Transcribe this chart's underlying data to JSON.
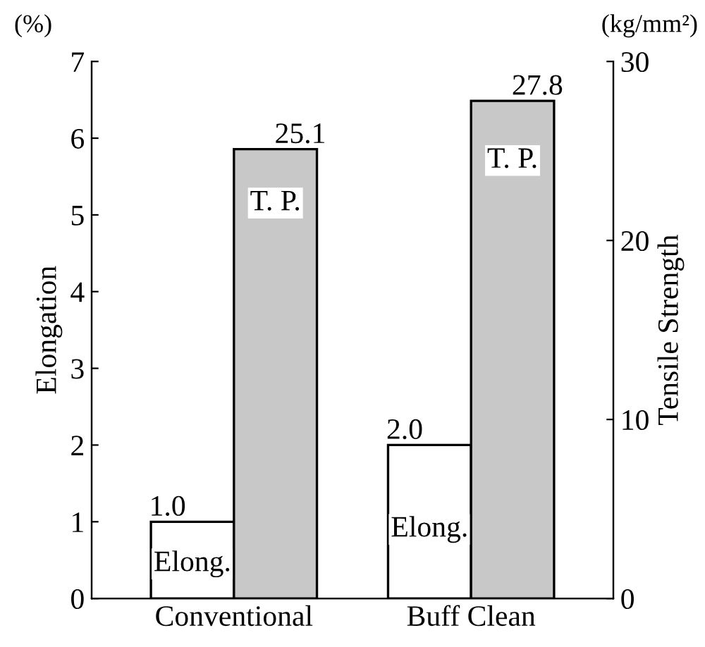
{
  "chart_data": {
    "type": "bar",
    "categories": [
      "Conventional",
      "Buff Clean"
    ],
    "series": [
      {
        "name": "Elong.",
        "color": "#ffffff",
        "values": [
          1.0,
          2.0
        ],
        "value_labels": [
          "1.0",
          "2.0"
        ]
      },
      {
        "name": "T. P.",
        "color": "#c8c8c8",
        "values": [
          25.1,
          27.8
        ],
        "value_labels": [
          "25.1",
          "27.8"
        ],
        "axis": "y2"
      }
    ],
    "ylabel": "Elongation",
    "y2label": "Tensile Strength",
    "annotations": [
      "(%)",
      "(kg/mm²)"
    ],
    "ylim": [
      0,
      7
    ],
    "yticks": [
      0,
      1,
      2,
      3,
      4,
      5,
      6,
      7
    ],
    "y2lim": [
      0,
      30
    ],
    "y2ticks": [
      0,
      10,
      20,
      30
    ],
    "grid": false
  }
}
